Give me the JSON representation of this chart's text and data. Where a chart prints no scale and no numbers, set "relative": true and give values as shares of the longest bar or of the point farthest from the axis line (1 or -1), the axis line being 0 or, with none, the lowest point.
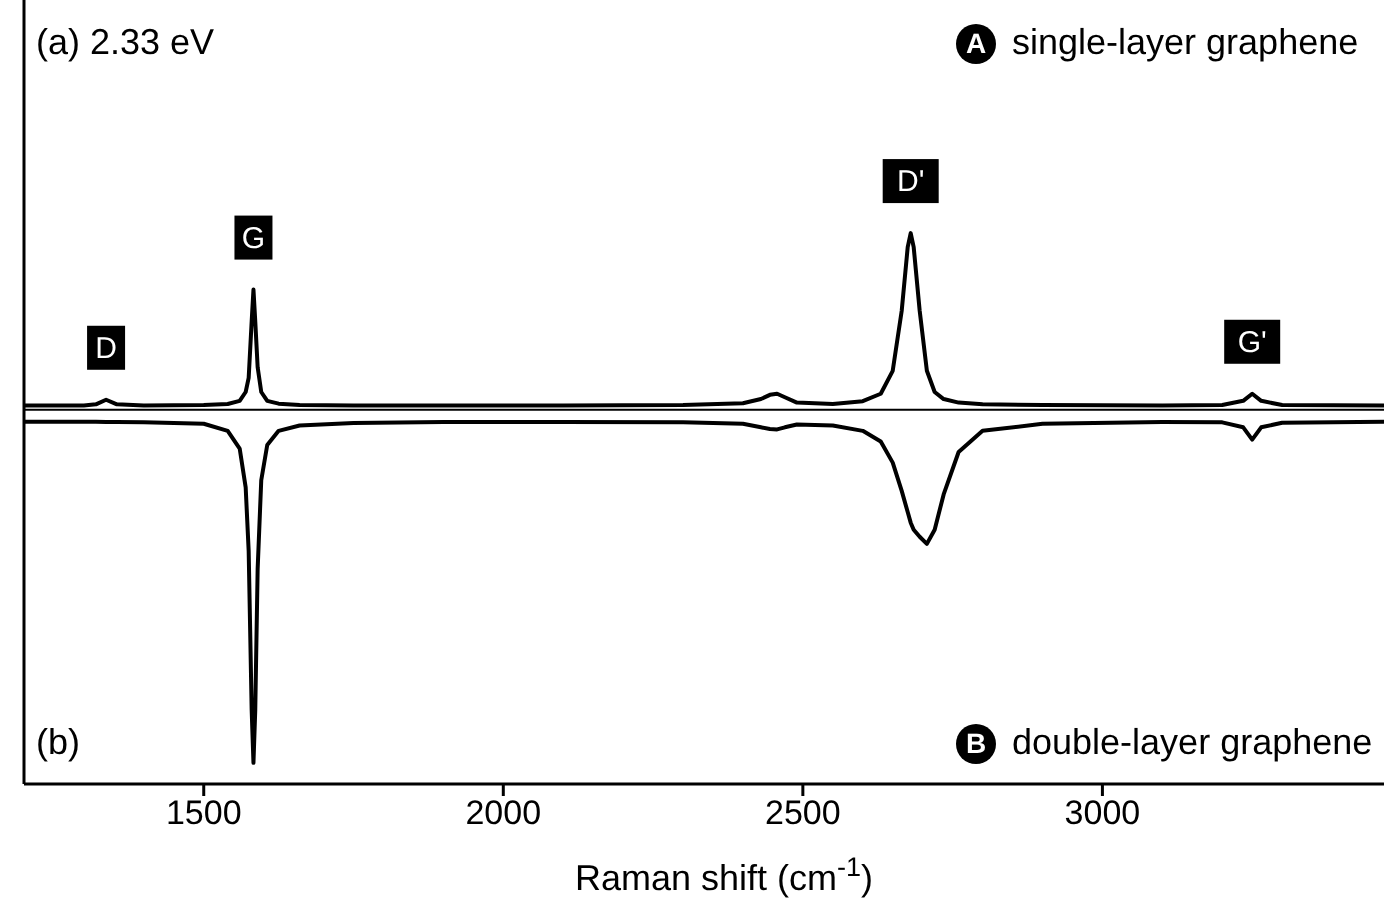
{
  "chart_data": {
    "type": "line",
    "relative": true,
    "xlabel": "Raman shift (cm$^{-1}$)",
    "xlim": [
      1200,
      3470
    ],
    "xticks": [
      1500,
      2000,
      2500,
      3000
    ],
    "grid": false,
    "legend": "right",
    "marker": "none",
    "line_style": "solid",
    "x": [
      1200,
      1300,
      1320,
      1337,
      1355,
      1400,
      1500,
      1540,
      1560,
      1570,
      1575,
      1580,
      1583,
      1586,
      1590,
      1596,
      1606,
      1625,
      1660,
      1750,
      1900,
      2100,
      2300,
      2400,
      2430,
      2445,
      2457,
      2470,
      2490,
      2550,
      2600,
      2630,
      2650,
      2665,
      2675,
      2680,
      2685,
      2695,
      2707,
      2720,
      2735,
      2760,
      2800,
      2900,
      3100,
      3200,
      3235,
      3250,
      3265,
      3300,
      3470
    ],
    "series": [
      {
        "name": "single-layer graphene",
        "color": "#000000",
        "values": [
          0.012,
          0.012,
          0.015,
          0.028,
          0.015,
          0.012,
          0.013,
          0.016,
          0.025,
          0.05,
          0.09,
          0.25,
          0.34,
          0.25,
          0.12,
          0.05,
          0.025,
          0.017,
          0.013,
          0.012,
          0.012,
          0.012,
          0.013,
          0.018,
          0.03,
          0.042,
          0.045,
          0.035,
          0.02,
          0.016,
          0.024,
          0.045,
          0.11,
          0.28,
          0.46,
          0.5,
          0.46,
          0.28,
          0.11,
          0.05,
          0.03,
          0.02,
          0.015,
          0.013,
          0.012,
          0.013,
          0.025,
          0.045,
          0.025,
          0.013,
          0.012
        ]
      },
      {
        "name": "double-layer graphene",
        "color": "#000000",
        "values": [
          -0.034,
          -0.034,
          -0.034,
          -0.035,
          -0.035,
          -0.036,
          -0.04,
          -0.06,
          -0.11,
          -0.22,
          -0.4,
          -0.85,
          -1,
          -0.85,
          -0.45,
          -0.2,
          -0.1,
          -0.06,
          -0.045,
          -0.038,
          -0.035,
          -0.035,
          -0.036,
          -0.04,
          -0.05,
          -0.055,
          -0.056,
          -0.05,
          -0.042,
          -0.045,
          -0.06,
          -0.09,
          -0.15,
          -0.23,
          -0.29,
          -0.32,
          -0.34,
          -0.36,
          -0.38,
          -0.34,
          -0.24,
          -0.12,
          -0.06,
          -0.04,
          -0.035,
          -0.036,
          -0.05,
          -0.085,
          -0.05,
          -0.037,
          -0.034
        ]
      }
    ],
    "ref_lines": [
      {
        "axis": "y",
        "value": 0,
        "color": "#000000"
      }
    ],
    "annotations": [
      "(a)  2.33 eV",
      "(b)",
      "A",
      "B",
      {
        "text": "D",
        "x": 1337,
        "y": 0.028
      },
      {
        "text": "G",
        "x": 1583,
        "y": 0.34
      },
      {
        "text": "D'",
        "x": 2680,
        "y": 0.5
      },
      {
        "text": "G'",
        "x": 3250,
        "y": 0.045
      }
    ]
  }
}
